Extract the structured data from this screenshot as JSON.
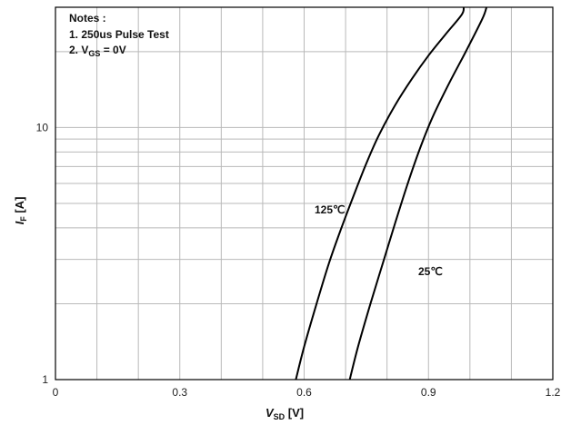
{
  "chart_data": {
    "type": "line",
    "title": "",
    "x_axis": {
      "label_main": "V",
      "label_sub": "SD",
      "label_unit": " [V]",
      "lim": [
        0,
        1.2
      ],
      "ticks": [
        0,
        0.3,
        0.6,
        0.9,
        1.2
      ],
      "tick_labels": [
        "0",
        "0.3",
        "0.6",
        "0.9",
        "1.2"
      ],
      "grid_step": 0.1,
      "scale": "linear"
    },
    "y_axis": {
      "label_main": "I",
      "label_sub": "F",
      "label_unit": " [A]",
      "lim": [
        1,
        30
      ],
      "ticks": [
        1,
        10
      ],
      "tick_labels": [
        "1",
        "10"
      ],
      "scale": "log",
      "grid": [
        2,
        3,
        4,
        5,
        6,
        7,
        8,
        9,
        10,
        20
      ]
    },
    "grid": true,
    "notes": {
      "title": "Notes :",
      "line1": "1. 250us Pulse Test",
      "line2_main": "2. V",
      "line2_sub": "GS",
      "line2_rest": " = 0V"
    },
    "series": [
      {
        "name": "125℃",
        "color": "#000000",
        "points": [
          [
            0.58,
            1.0
          ],
          [
            0.6,
            1.35
          ],
          [
            0.63,
            2.0
          ],
          [
            0.66,
            2.9
          ],
          [
            0.69,
            4.0
          ],
          [
            0.72,
            5.4
          ],
          [
            0.75,
            7.2
          ],
          [
            0.78,
            9.3
          ],
          [
            0.82,
            12.3
          ],
          [
            0.86,
            15.6
          ],
          [
            0.9,
            19.3
          ],
          [
            0.94,
            23.3
          ],
          [
            0.98,
            28.0
          ],
          [
            0.985,
            30.0
          ]
        ]
      },
      {
        "name": "25℃",
        "color": "#000000",
        "points": [
          [
            0.71,
            1.0
          ],
          [
            0.73,
            1.35
          ],
          [
            0.76,
            2.0
          ],
          [
            0.79,
            2.9
          ],
          [
            0.82,
            4.2
          ],
          [
            0.85,
            6.0
          ],
          [
            0.88,
            8.3
          ],
          [
            0.91,
            11.0
          ],
          [
            0.95,
            15.0
          ],
          [
            0.99,
            20.0
          ],
          [
            1.03,
            27.0
          ],
          [
            1.04,
            30.0
          ]
        ]
      }
    ],
    "annotations": [
      {
        "text": "125℃",
        "series": 0
      },
      {
        "text": "25℃",
        "series": 1
      }
    ]
  }
}
